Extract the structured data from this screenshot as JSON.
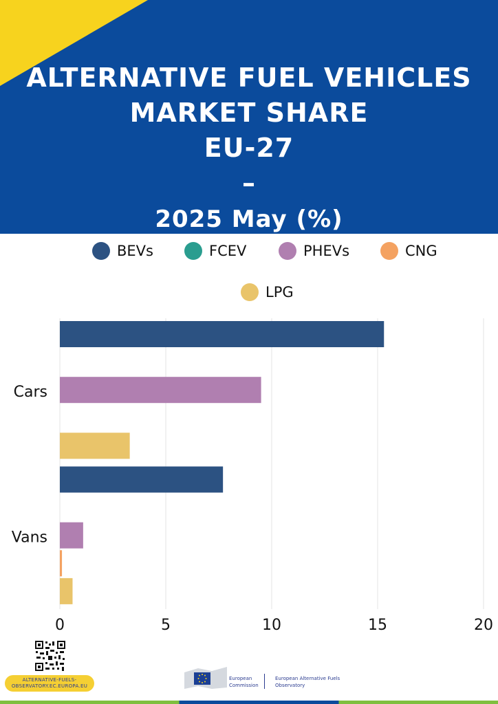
{
  "header": {
    "title_lines": [
      "ALTERNATIVE FUEL VEHICLES",
      "MARKET SHARE",
      "EU-27",
      "–"
    ],
    "subtitle": "2025 May (%)"
  },
  "legend": [
    {
      "label": "BEVs",
      "color": "#2c5282"
    },
    {
      "label": "FCEV",
      "color": "#2a9d8f"
    },
    {
      "label": "PHEVs",
      "color": "#b07fb0"
    },
    {
      "label": "CNG",
      "color": "#f4a261"
    },
    {
      "label": "LPG",
      "color": "#e9c46a"
    }
  ],
  "chart_data": {
    "type": "bar",
    "orientation": "horizontal",
    "categories": [
      "Cars",
      "Vans"
    ],
    "series": [
      {
        "name": "BEVs",
        "color": "#2c5282",
        "values": [
          15.3,
          7.7
        ]
      },
      {
        "name": "FCEV",
        "color": "#2a9d8f",
        "values": [
          0,
          0
        ]
      },
      {
        "name": "PHEVs",
        "color": "#b07fb0",
        "values": [
          9.5,
          1.1
        ]
      },
      {
        "name": "CNG",
        "color": "#f4a261",
        "values": [
          0,
          0.1
        ]
      },
      {
        "name": "LPG",
        "color": "#e9c46a",
        "values": [
          3.3,
          0.6
        ]
      }
    ],
    "xlim": [
      0,
      20
    ],
    "xticks": [
      "0",
      "5",
      "10",
      "15",
      "20"
    ],
    "grid": true,
    "legend_position": "top"
  },
  "footer": {
    "website": "ALTERNATIVE-FUELS-OBSERVATORY.EC.EUROPA.EU",
    "commission": "European Commission",
    "observatory": "European Alternative Fuels Observatory",
    "icons": [
      "qr-code-icon",
      "eu-flag-icon"
    ]
  }
}
